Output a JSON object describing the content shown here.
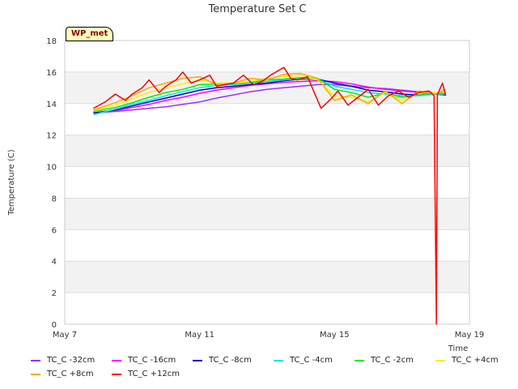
{
  "station_tag": "WP_met",
  "chart_data": {
    "type": "line",
    "title": "Temperature Set C",
    "xlabel": "Time",
    "ylabel": "Temperature (C)",
    "ylim": [
      0,
      18
    ],
    "xlim": [
      0,
      12
    ],
    "y_ticks": [
      0,
      2,
      4,
      6,
      8,
      10,
      12,
      14,
      16,
      18
    ],
    "x_ticks": [
      {
        "value": 0,
        "label": "May 7"
      },
      {
        "value": 4,
        "label": "May 11"
      },
      {
        "value": 8,
        "label": "May 15"
      },
      {
        "value": 12,
        "label": "May 19"
      }
    ],
    "x_units": "days since May 7",
    "grid": "horizontal alternating bands",
    "series": [
      {
        "name": "TC_C -32cm",
        "color": "#9b30ff",
        "x": [
          0.85,
          1.5,
          2.0,
          2.5,
          3.0,
          3.5,
          4.0,
          4.5,
          5.0,
          5.5,
          6.0,
          6.5,
          7.0,
          7.5,
          8.0,
          8.5,
          9.0,
          9.5,
          10.0,
          10.5,
          11.0,
          11.3
        ],
        "y": [
          13.4,
          13.5,
          13.6,
          13.7,
          13.8,
          13.95,
          14.1,
          14.35,
          14.55,
          14.75,
          14.9,
          15.0,
          15.1,
          15.2,
          15.2,
          15.1,
          15.0,
          14.95,
          14.85,
          14.75,
          14.7,
          14.6
        ]
      },
      {
        "name": "TC_C -16cm",
        "color": "#ff00ff",
        "x": [
          0.85,
          1.5,
          2.0,
          2.5,
          3.0,
          3.5,
          4.0,
          4.5,
          5.0,
          5.5,
          6.0,
          6.5,
          7.0,
          7.5,
          8.0,
          8.5,
          9.0,
          9.5,
          10.0,
          10.5,
          11.0,
          11.3
        ],
        "y": [
          13.4,
          13.55,
          13.75,
          13.95,
          14.2,
          14.4,
          14.65,
          14.85,
          15.0,
          15.15,
          15.25,
          15.35,
          15.4,
          15.45,
          15.4,
          15.25,
          15.05,
          14.9,
          14.8,
          14.7,
          14.6,
          14.55
        ]
      },
      {
        "name": "TC_C -8cm",
        "color": "#0000cc",
        "x": [
          0.85,
          1.5,
          2.0,
          2.5,
          3.0,
          3.5,
          4.0,
          4.5,
          5.0,
          5.5,
          6.0,
          6.5,
          7.0,
          7.5,
          8.0,
          8.5,
          9.0,
          9.5,
          10.0,
          10.5,
          11.0,
          11.3
        ],
        "y": [
          13.4,
          13.6,
          13.85,
          14.1,
          14.35,
          14.6,
          14.85,
          15.0,
          15.1,
          15.2,
          15.3,
          15.45,
          15.55,
          15.55,
          15.3,
          15.1,
          14.85,
          14.75,
          14.6,
          14.55,
          14.6,
          14.55
        ]
      },
      {
        "name": "TC_C -4cm",
        "color": "#00e5ee",
        "x": [
          0.85,
          1.5,
          2.0,
          2.5,
          3.0,
          3.5,
          4.0,
          4.5,
          5.0,
          5.5,
          6.0,
          6.5,
          7.0,
          7.5,
          8.0,
          8.5,
          9.0,
          9.5,
          10.0,
          10.5,
          11.0,
          11.3
        ],
        "y": [
          13.3,
          13.65,
          13.95,
          14.2,
          14.5,
          14.75,
          15.0,
          15.15,
          15.2,
          15.3,
          15.4,
          15.5,
          15.6,
          15.55,
          15.1,
          14.9,
          14.7,
          14.6,
          14.5,
          14.5,
          14.6,
          14.6
        ]
      },
      {
        "name": "TC_C -2cm",
        "color": "#00ee00",
        "x": [
          0.85,
          1.5,
          2.0,
          2.5,
          3.0,
          3.5,
          4.0,
          4.5,
          5.0,
          5.5,
          6.0,
          6.5,
          7.0,
          7.5,
          8.0,
          8.5,
          9.0,
          9.5,
          10.0,
          10.5,
          11.0,
          11.3
        ],
        "y": [
          13.5,
          13.75,
          14.05,
          14.4,
          14.7,
          14.9,
          15.2,
          15.25,
          15.25,
          15.35,
          15.5,
          15.55,
          15.65,
          15.6,
          14.9,
          14.7,
          14.4,
          14.65,
          14.4,
          14.55,
          14.7,
          14.65
        ]
      },
      {
        "name": "TC_C +4cm",
        "color": "#ffee00",
        "x": [
          0.85,
          1.5,
          2.0,
          2.5,
          3.0,
          3.5,
          4.0,
          4.5,
          5.0,
          5.5,
          6.0,
          6.5,
          7.0,
          7.5,
          8.0,
          8.5,
          9.0,
          9.5,
          10.0,
          10.5,
          11.0,
          11.3
        ],
        "y": [
          13.55,
          13.9,
          14.3,
          14.7,
          15.0,
          15.25,
          15.5,
          15.3,
          15.3,
          15.4,
          15.6,
          15.7,
          15.8,
          15.5,
          14.5,
          14.4,
          14.1,
          14.7,
          14.2,
          14.7,
          14.7,
          14.75
        ]
      },
      {
        "name": "TC_C +8cm",
        "color": "#ffa500",
        "x": [
          0.85,
          1.5,
          2.0,
          2.5,
          3.0,
          3.5,
          4.0,
          4.5,
          5.0,
          5.5,
          6.0,
          6.5,
          7.0,
          7.5,
          8.0,
          8.5,
          9.0,
          9.5,
          10.0,
          10.5,
          11.0,
          11.3
        ],
        "y": [
          13.6,
          14.05,
          14.5,
          15.0,
          15.3,
          15.6,
          15.7,
          15.2,
          15.3,
          15.6,
          15.5,
          15.85,
          15.9,
          15.6,
          14.2,
          14.55,
          14.0,
          14.8,
          14.0,
          14.8,
          14.6,
          14.9
        ]
      },
      {
        "name": "TC_C +12cm",
        "color": "#ff0000",
        "x": [
          0.85,
          1.2,
          1.5,
          1.8,
          2.0,
          2.3,
          2.5,
          2.8,
          3.0,
          3.3,
          3.5,
          3.75,
          4.0,
          4.3,
          4.5,
          4.75,
          5.0,
          5.3,
          5.6,
          5.85,
          6.1,
          6.5,
          6.7,
          6.9,
          7.2,
          7.4,
          7.6,
          7.9,
          8.1,
          8.4,
          8.7,
          9.0,
          9.3,
          9.6,
          9.9,
          10.2,
          10.5,
          10.8,
          10.95,
          11.02,
          11.05,
          11.08,
          11.12,
          11.2,
          11.3
        ],
        "y": [
          13.7,
          14.1,
          14.6,
          14.2,
          14.6,
          15.0,
          15.5,
          14.7,
          15.1,
          15.5,
          16.0,
          15.3,
          15.5,
          15.8,
          15.1,
          15.2,
          15.3,
          15.8,
          15.2,
          15.4,
          15.8,
          16.3,
          15.6,
          15.5,
          15.7,
          14.7,
          13.7,
          14.3,
          14.8,
          13.9,
          14.4,
          14.9,
          13.9,
          14.5,
          14.8,
          14.4,
          14.7,
          14.8,
          14.5,
          0.0,
          14.6,
          14.7,
          14.9,
          15.3,
          14.5
        ]
      }
    ]
  }
}
